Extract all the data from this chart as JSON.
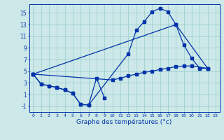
{
  "xlabel": "Graphe des températures (°c)",
  "bg_color": "#cce8e8",
  "line_color": "#0033aa",
  "grid_color": "#99cccc",
  "ylim": [
    -2,
    16.5
  ],
  "xlim": [
    -0.5,
    23.5
  ],
  "yticks": [
    -1,
    1,
    3,
    5,
    7,
    9,
    11,
    13,
    15
  ],
  "xticks": [
    0,
    1,
    2,
    3,
    4,
    5,
    6,
    7,
    8,
    9,
    10,
    11,
    12,
    13,
    14,
    15,
    16,
    17,
    18,
    19,
    20,
    21,
    22,
    23
  ],
  "line1_x": [
    0,
    1,
    2,
    3,
    4,
    5,
    6,
    7,
    8,
    9
  ],
  "line1_y": [
    4.5,
    2.8,
    2.5,
    2.2,
    1.8,
    1.2,
    -0.7,
    -0.8,
    3.8,
    0.4
  ],
  "line2_x": [
    0,
    1,
    2,
    3,
    4,
    5,
    6,
    7,
    12,
    13,
    14,
    15,
    16,
    17,
    18,
    19,
    20,
    21,
    22
  ],
  "line2_y": [
    4.5,
    2.8,
    2.5,
    2.2,
    1.8,
    1.2,
    -0.7,
    -0.8,
    8.0,
    12.0,
    13.5,
    15.2,
    15.8,
    15.2,
    13.0,
    9.5,
    7.2,
    5.5,
    5.5
  ],
  "line3_x": [
    0,
    18,
    22
  ],
  "line3_y": [
    4.5,
    13.0,
    5.5
  ],
  "line4_x": [
    0,
    10,
    11,
    12,
    13,
    14,
    15,
    16,
    17,
    18,
    19,
    20,
    22
  ],
  "line4_y": [
    4.5,
    3.5,
    3.8,
    4.2,
    4.5,
    4.8,
    5.0,
    5.3,
    5.5,
    5.8,
    5.9,
    5.9,
    5.5
  ]
}
